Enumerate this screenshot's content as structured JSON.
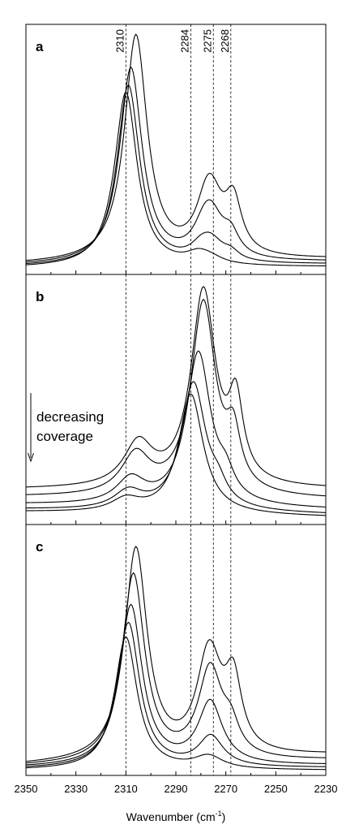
{
  "chart_data": {
    "type": "line",
    "xlabel": "Wavenumber (cm",
    "xlabel_sup": "-1",
    "xlabel_tail": ")",
    "xlim": [
      2350,
      2230
    ],
    "x_reversed": true,
    "xticks": [
      2350,
      2330,
      2310,
      2290,
      2270,
      2250,
      2230
    ],
    "peak_lines": [
      {
        "x": 2310,
        "label": "2310"
      },
      {
        "x": 2284,
        "label": "2284"
      },
      {
        "x": 2275,
        "label": "2275"
      },
      {
        "x": 2268,
        "label": "2268"
      }
    ],
    "annotation": {
      "line1": "decreasing",
      "line2": "coverage",
      "panel": "b"
    },
    "panels": [
      {
        "label": "a",
        "ylim": [
          0,
          1
        ],
        "series": [
          {
            "base": 0.04,
            "tail": 0.06,
            "peaks": [
              [
                2306,
                0.9,
                5.5
              ],
              [
                2278,
                0.08,
                5
              ],
              [
                2276,
                0.22,
                6
              ],
              [
                2267,
                0.2,
                4
              ]
            ]
          },
          {
            "base": 0.035,
            "tail": 0.05,
            "peaks": [
              [
                2308,
                0.78,
                5.5
              ],
              [
                2279,
                0.06,
                5
              ],
              [
                2276,
                0.17,
                6
              ],
              [
                2268,
                0.08,
                4
              ]
            ]
          },
          {
            "base": 0.03,
            "tail": 0.04,
            "peaks": [
              [
                2309,
                0.72,
                5.5
              ],
              [
                2280,
                0.04,
                5
              ],
              [
                2276,
                0.08,
                6
              ],
              [
                2268,
                0.03,
                4
              ]
            ]
          },
          {
            "base": 0.025,
            "tail": 0.03,
            "peaks": [
              [
                2310,
                0.7,
                5.5
              ],
              [
                2281,
                0.04,
                6
              ],
              [
                2276,
                0.02,
                6
              ]
            ]
          }
        ]
      },
      {
        "label": "b",
        "ylim": [
          0,
          1
        ],
        "series": [
          {
            "base": 0.14,
            "tail": 0.14,
            "peaks": [
              [
                2305,
                0.17,
                7
              ],
              [
                2279,
                0.78,
                6
              ],
              [
                2266,
                0.3,
                3.5
              ]
            ]
          },
          {
            "base": 0.11,
            "tail": 0.1,
            "peaks": [
              [
                2306,
                0.16,
                7
              ],
              [
                2279,
                0.77,
                6
              ],
              [
                2267,
                0.2,
                3.5
              ]
            ]
          },
          {
            "base": 0.08,
            "tail": 0.06,
            "peaks": [
              [
                2308,
                0.1,
                7
              ],
              [
                2281,
                0.61,
                6
              ],
              [
                2270,
                0.08,
                4
              ]
            ]
          },
          {
            "base": 0.06,
            "tail": 0.04,
            "peaks": [
              [
                2309,
                0.07,
                7
              ],
              [
                2283,
                0.51,
                6
              ],
              [
                2273,
                0.06,
                4
              ]
            ]
          },
          {
            "base": 0.05,
            "tail": 0.03,
            "peaks": [
              [
                2310,
                0.05,
                7
              ],
              [
                2284,
                0.48,
                6
              ]
            ]
          }
        ]
      },
      {
        "label": "c",
        "ylim": [
          0,
          1
        ],
        "series": [
          {
            "base": 0.04,
            "tail": 0.08,
            "peaks": [
              [
                2306,
                0.84,
                5.5
              ],
              [
                2278,
                0.12,
                5
              ],
              [
                2276,
                0.3,
                6
              ],
              [
                2267,
                0.27,
                4
              ]
            ]
          },
          {
            "base": 0.035,
            "tail": 0.06,
            "peaks": [
              [
                2307,
                0.75,
                5.5
              ],
              [
                2277,
                0.08,
                5
              ],
              [
                2276,
                0.28,
                6
              ],
              [
                2268,
                0.1,
                4
              ]
            ]
          },
          {
            "base": 0.03,
            "tail": 0.04,
            "peaks": [
              [
                2308,
                0.64,
                5.5
              ],
              [
                2277,
                0.05,
                5
              ],
              [
                2276,
                0.2,
                6
              ]
            ]
          },
          {
            "base": 0.025,
            "tail": 0.03,
            "peaks": [
              [
                2309,
                0.58,
                5.5
              ],
              [
                2276,
                0.12,
                6
              ]
            ]
          },
          {
            "base": 0.02,
            "tail": 0.02,
            "peaks": [
              [
                2310,
                0.53,
                5.5
              ],
              [
                2277,
                0.05,
                7
              ]
            ]
          }
        ]
      }
    ]
  }
}
